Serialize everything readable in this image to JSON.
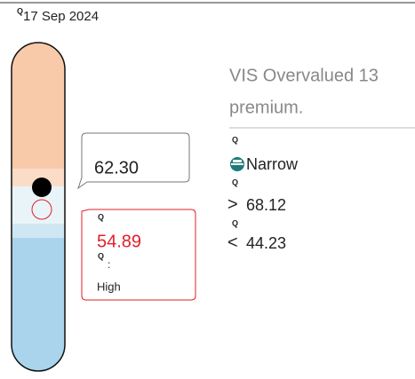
{
  "header": {
    "icon": "Q",
    "date": "17 Sep 2024"
  },
  "summary": {
    "line1": "VIS Overvalued 13",
    "line2": "premium."
  },
  "price_callout": {
    "value": "62.30"
  },
  "fair_value_callout": {
    "icon": "Q",
    "value": "54.89",
    "icon2": "Q",
    "separator": ":",
    "label": "High"
  },
  "details": [
    {
      "icon": "Q",
      "symbol": "",
      "text": "Narrow"
    },
    {
      "icon": "Q",
      "symbol": ">",
      "text": "68.12"
    },
    {
      "icon": "Q",
      "symbol": "<",
      "text": "44.23"
    }
  ]
}
